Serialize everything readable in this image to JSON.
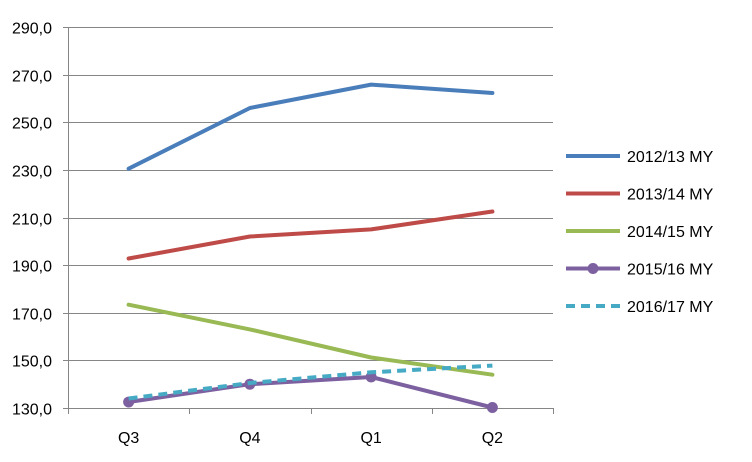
{
  "chart_data": {
    "type": "line",
    "title": "",
    "xlabel": "",
    "ylabel": "",
    "categories": [
      "Q3",
      "Q4",
      "Q1",
      "Q2"
    ],
    "ylim": [
      130,
      290
    ],
    "yticks": [
      130,
      150,
      170,
      190,
      210,
      230,
      250,
      270,
      290
    ],
    "ytick_labels": [
      "130,0",
      "150,0",
      "170,0",
      "190,0",
      "210,0",
      "230,0",
      "250,0",
      "270,0",
      "290,0"
    ],
    "grid": true,
    "legend_position": "right",
    "series": [
      {
        "name": "2012/13 MY",
        "values": [
          230.5,
          256.0,
          265.8,
          262.3
        ],
        "color": "#4a7ebb",
        "style": "solid",
        "marker": "none"
      },
      {
        "name": "2013/14 MY",
        "values": [
          192.8,
          202.0,
          205.0,
          212.5
        ],
        "color": "#be4b48",
        "style": "solid",
        "marker": "none"
      },
      {
        "name": "2014/15 MY",
        "values": [
          173.4,
          163.0,
          151.2,
          144.0
        ],
        "color": "#98b954",
        "style": "solid",
        "marker": "none"
      },
      {
        "name": "2015/16 MY",
        "values": [
          132.5,
          140.0,
          143.0,
          130.2
        ],
        "color": "#7d60a0",
        "style": "solid",
        "marker": "circle"
      },
      {
        "name": "2016/17 MY",
        "values": [
          134.0,
          140.5,
          145.0,
          147.8
        ],
        "color": "#46aac5",
        "style": "dashed",
        "marker": "none"
      }
    ]
  }
}
